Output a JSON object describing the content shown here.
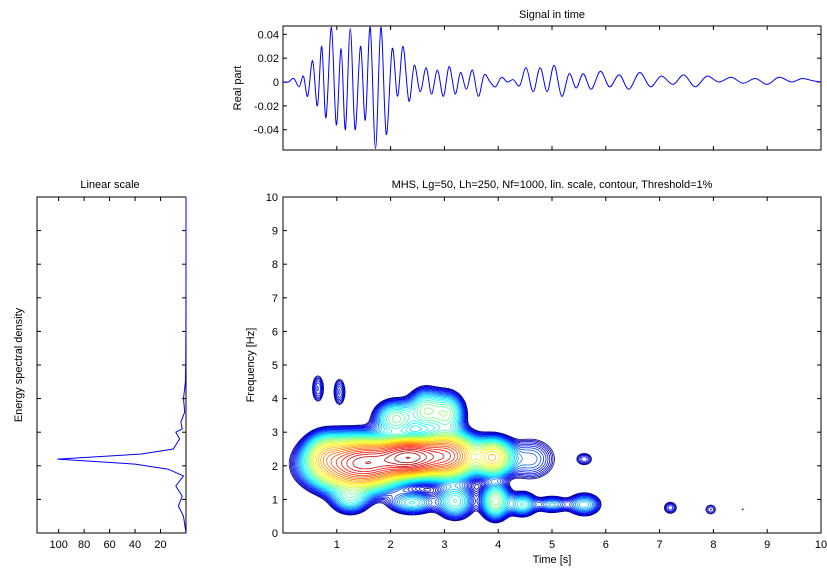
{
  "chart_data": [
    {
      "type": "line",
      "title": "Signal in time",
      "ylabel": "Real part",
      "xlabel": "",
      "xlim": [
        0,
        10
      ],
      "ylim": [
        -0.057,
        0.047
      ],
      "yticks": [
        0.04,
        0.02,
        0,
        -0.02,
        -0.04
      ],
      "ytick_labels": [
        "0.04",
        "0.02",
        "0",
        "-0.02",
        "-0.04"
      ],
      "line_color": "#0000ff",
      "series": [
        {
          "x": [
            0,
            0.1,
            0.2,
            0.3,
            0.38,
            0.46,
            0.55,
            0.64,
            0.72,
            0.8,
            0.9,
            0.99,
            1.08,
            1.16,
            1.25,
            1.34,
            1.44,
            1.53,
            1.62,
            1.72,
            1.82,
            1.92,
            2.03,
            2.13,
            2.23,
            2.34,
            2.44,
            2.55,
            2.66,
            2.76,
            2.87,
            2.98,
            3.09,
            3.2,
            3.3,
            3.41,
            3.52,
            3.63,
            3.74,
            3.85,
            3.95,
            4.06,
            4.17,
            4.28,
            4.4,
            4.52,
            4.65,
            4.78,
            4.91,
            5.04,
            5.18,
            5.32,
            5.45,
            5.58,
            5.73,
            5.9,
            6.07,
            6.25,
            6.43,
            6.63,
            6.83,
            7.03,
            7.25,
            7.45,
            7.66,
            7.88,
            8.1,
            8.33,
            8.55,
            8.78,
            9.0,
            9.22,
            9.45,
            9.65,
            9.85,
            10.0
          ],
          "y": [
            0.0,
            0.0,
            0.003,
            -0.004,
            0.005,
            -0.012,
            0.018,
            -0.02,
            0.03,
            -0.03,
            0.046,
            -0.036,
            0.028,
            -0.04,
            0.045,
            -0.04,
            0.03,
            -0.032,
            0.046,
            -0.056,
            0.046,
            -0.044,
            0.028,
            -0.012,
            0.03,
            -0.016,
            0.014,
            -0.008,
            0.012,
            -0.01,
            0.01,
            -0.012,
            0.013,
            -0.01,
            0.008,
            -0.006,
            0.01,
            -0.012,
            0.006,
            0.0,
            -0.004,
            0.004,
            0.0,
            0.002,
            -0.003,
            0.012,
            -0.008,
            0.012,
            -0.008,
            0.014,
            -0.012,
            0.007,
            -0.005,
            0.007,
            -0.006,
            0.009,
            -0.004,
            0.006,
            -0.006,
            0.008,
            -0.004,
            0.005,
            -0.002,
            0.006,
            -0.004,
            0.005,
            0.0,
            0.004,
            -0.001,
            0.003,
            -0.002,
            0.004,
            0.0,
            0.003,
            0.001,
            0.0
          ]
        }
      ]
    },
    {
      "type": "line",
      "title": "Linear scale",
      "ylabel": "Energy spectral density",
      "xlabel": "",
      "xticks": [
        100,
        80,
        60,
        40,
        20
      ],
      "xtick_labels": [
        "100",
        "80",
        "60",
        "40",
        "20"
      ],
      "xlim": [
        117,
        0
      ],
      "ylim": [
        0,
        10
      ],
      "x_reversed": true,
      "line_color": "#0000ff",
      "series": [
        {
          "frequency_hz": [
            0.0,
            0.5,
            0.8,
            1.1,
            1.4,
            1.7,
            1.9,
            2.05,
            2.2,
            2.35,
            2.5,
            2.8,
            3.0,
            3.1,
            3.3,
            3.6,
            4.0,
            4.5,
            5.0,
            6.0,
            8.0,
            10.0
          ],
          "energy": [
            0.0,
            2.0,
            6.0,
            3.0,
            8.0,
            2.0,
            14.0,
            40.0,
            101.0,
            35.0,
            10.0,
            5.0,
            8.0,
            3.0,
            4.0,
            1.0,
            2.0,
            0.5,
            0.2,
            0.1,
            0.0,
            0.0
          ]
        }
      ]
    },
    {
      "type": "heatmap",
      "title": "MHS, Lg=50, Lh=250, Nf=1000, lin. scale, contour, Threshold=1%",
      "xlabel": "Time [s]",
      "ylabel": "Frequency [Hz]",
      "xlim": [
        0,
        10
      ],
      "ylim": [
        0,
        10
      ],
      "xticks": [
        1,
        2,
        3,
        4,
        5,
        6,
        7,
        8,
        9,
        10
      ],
      "xtick_labels": [
        "1",
        "2",
        "3",
        "4",
        "5",
        "6",
        "7",
        "8",
        "9",
        "10"
      ],
      "yticks": [
        0,
        1,
        2,
        3,
        4,
        5,
        6,
        7,
        8,
        9,
        10
      ],
      "ytick_labels": [
        "0",
        "1",
        "2",
        "3",
        "4",
        "5",
        "6",
        "7",
        "8",
        "9",
        "10"
      ],
      "contour_levels": 12,
      "colormap": [
        "#00008f",
        "#0000ff",
        "#0080ff",
        "#00ffff",
        "#80ff80",
        "#ffff00",
        "#ff8000",
        "#ff0000",
        "#800000"
      ],
      "blobs": [
        {
          "t": 2.35,
          "f": 2.25,
          "st": 0.32,
          "sf": 0.28,
          "amp": 1.0
        },
        {
          "t": 1.35,
          "f": 2.05,
          "st": 0.45,
          "sf": 0.42,
          "amp": 0.55
        },
        {
          "t": 3.05,
          "f": 2.3,
          "st": 0.3,
          "sf": 0.35,
          "amp": 0.55
        },
        {
          "t": 1.65,
          "f": 2.1,
          "st": 0.35,
          "sf": 0.3,
          "amp": 0.35
        },
        {
          "t": 0.78,
          "f": 2.3,
          "st": 0.2,
          "sf": 0.35,
          "amp": 0.14
        },
        {
          "t": 3.9,
          "f": 2.25,
          "st": 0.2,
          "sf": 0.3,
          "amp": 0.28
        },
        {
          "t": 2.1,
          "f": 3.4,
          "st": 0.22,
          "sf": 0.3,
          "amp": 0.12
        },
        {
          "t": 2.65,
          "f": 3.65,
          "st": 0.18,
          "sf": 0.35,
          "amp": 0.12
        },
        {
          "t": 3.05,
          "f": 3.55,
          "st": 0.18,
          "sf": 0.35,
          "amp": 0.12
        },
        {
          "t": 4.6,
          "f": 2.2,
          "st": 0.3,
          "sf": 0.4,
          "amp": 0.04
        },
        {
          "t": 5.6,
          "f": 2.2,
          "st": 0.12,
          "sf": 0.15,
          "amp": 0.025
        },
        {
          "t": 1.25,
          "f": 1.0,
          "st": 0.2,
          "sf": 0.25,
          "amp": 0.07
        },
        {
          "t": 2.4,
          "f": 0.9,
          "st": 0.25,
          "sf": 0.2,
          "amp": 0.07
        },
        {
          "t": 3.2,
          "f": 0.95,
          "st": 0.2,
          "sf": 0.3,
          "amp": 0.09
        },
        {
          "t": 3.95,
          "f": 0.95,
          "st": 0.15,
          "sf": 0.3,
          "amp": 0.14
        },
        {
          "t": 4.45,
          "f": 0.85,
          "st": 0.15,
          "sf": 0.2,
          "amp": 0.08
        },
        {
          "t": 5.0,
          "f": 0.85,
          "st": 0.18,
          "sf": 0.15,
          "amp": 0.05
        },
        {
          "t": 5.6,
          "f": 0.85,
          "st": 0.18,
          "sf": 0.2,
          "amp": 0.06
        },
        {
          "t": 7.2,
          "f": 0.75,
          "st": 0.1,
          "sf": 0.15,
          "amp": 0.025
        },
        {
          "t": 7.95,
          "f": 0.7,
          "st": 0.1,
          "sf": 0.15,
          "amp": 0.02
        },
        {
          "t": 0.65,
          "f": 4.3,
          "st": 0.08,
          "sf": 0.3,
          "amp": 0.03
        },
        {
          "t": 1.05,
          "f": 4.2,
          "st": 0.08,
          "sf": 0.3,
          "amp": 0.03
        },
        {
          "t": 8.55,
          "f": 0.7,
          "st": 0.04,
          "sf": 0.06,
          "amp": 0.015
        }
      ]
    }
  ]
}
